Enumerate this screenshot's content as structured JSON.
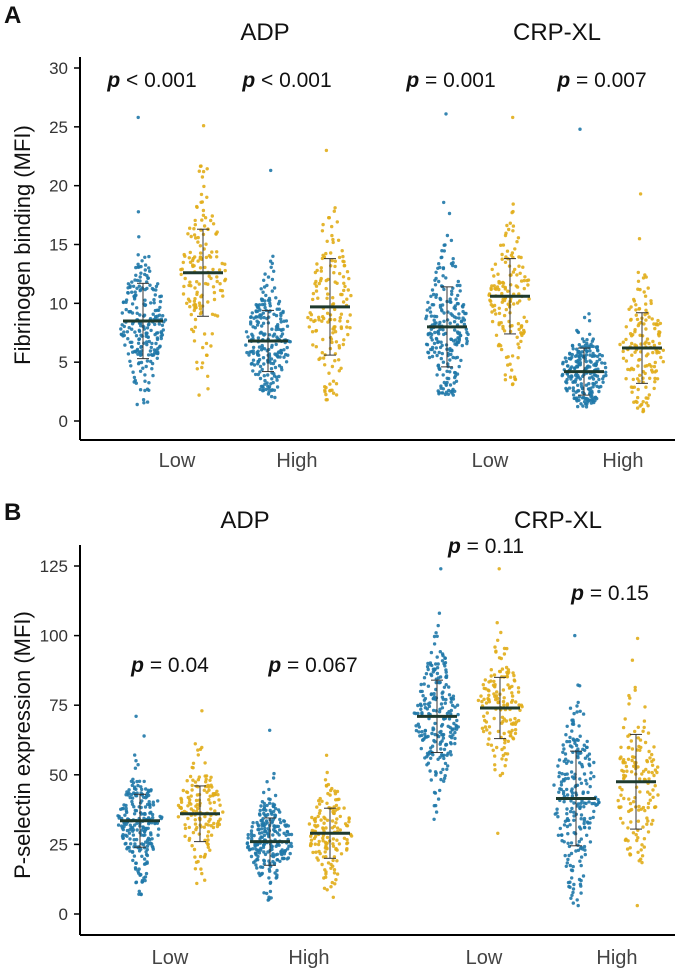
{
  "colors": {
    "blue": "#1f78a8",
    "gold": "#e1ad1a",
    "mean": "#1e3a2e",
    "sd": "#333333",
    "axis": "#000000"
  },
  "chart_data": [
    {
      "type": "scatter",
      "panel_label": "A",
      "ylabel": "Fibrinogen binding (MFI)",
      "ylim": [
        0,
        30
      ],
      "yticks": [
        0,
        5,
        10,
        15,
        20,
        25,
        30
      ],
      "agonists": [
        "ADP",
        "CRP-XL"
      ],
      "categories": [
        "Low",
        "High",
        "Low",
        "High"
      ],
      "groups": [
        {
          "agonist": "ADP",
          "level": "Low",
          "p_label": "p",
          "p_value": "< 0.001",
          "blue": {
            "mean": 8.5,
            "sd": 3.2,
            "min": 1.4,
            "max": 25.8,
            "n": 230
          },
          "gold": {
            "mean": 12.6,
            "sd": 3.7,
            "min": 2.2,
            "max": 25.1,
            "n": 150
          }
        },
        {
          "agonist": "ADP",
          "level": "High",
          "p_label": "p",
          "p_value": "< 0.001",
          "blue": {
            "mean": 6.8,
            "sd": 2.6,
            "min": 2.0,
            "max": 21.3,
            "n": 230
          },
          "gold": {
            "mean": 9.7,
            "sd": 4.1,
            "min": 1.8,
            "max": 23.0,
            "n": 150
          }
        },
        {
          "agonist": "CRP-XL",
          "level": "Low",
          "p_label": "p",
          "p_value": "= 0.001",
          "blue": {
            "mean": 8.0,
            "sd": 3.4,
            "min": 2.2,
            "max": 26.1,
            "n": 230
          },
          "gold": {
            "mean": 10.6,
            "sd": 3.2,
            "min": 3.1,
            "max": 25.8,
            "n": 150
          }
        },
        {
          "agonist": "CRP-XL",
          "level": "High",
          "p_label": "p",
          "p_value": "= 0.007",
          "blue": {
            "mean": 4.2,
            "sd": 2.0,
            "min": 1.2,
            "max": 24.8,
            "n": 230
          },
          "gold": {
            "mean": 6.2,
            "sd": 3.0,
            "min": 0.8,
            "max": 19.3,
            "n": 150
          }
        }
      ]
    },
    {
      "type": "scatter",
      "panel_label": "B",
      "ylabel": "P-selectin expression (MFI)",
      "ylim": [
        0,
        125
      ],
      "yticks": [
        0,
        25,
        50,
        75,
        100,
        125
      ],
      "agonists": [
        "ADP",
        "CRP-XL"
      ],
      "categories": [
        "Low",
        "High",
        "Low",
        "High"
      ],
      "groups": [
        {
          "agonist": "ADP",
          "level": "Low",
          "p_label": "p",
          "p_value": "= 0.04",
          "blue": {
            "mean": 33.5,
            "sd": 9.5,
            "min": 7.0,
            "max": 71.0,
            "n": 230
          },
          "gold": {
            "mean": 36.0,
            "sd": 10.0,
            "min": 11.0,
            "max": 73.0,
            "n": 150
          }
        },
        {
          "agonist": "ADP",
          "level": "High",
          "p_label": "p",
          "p_value": "= 0.067",
          "blue": {
            "mean": 26.0,
            "sd": 8.5,
            "min": 5.0,
            "max": 66.0,
            "n": 230
          },
          "gold": {
            "mean": 29.0,
            "sd": 9.0,
            "min": 6.0,
            "max": 57.0,
            "n": 150
          }
        },
        {
          "agonist": "CRP-XL",
          "level": "Low",
          "p_label": "p",
          "p_value": "= 0.11",
          "blue": {
            "mean": 71.0,
            "sd": 13.0,
            "min": 34.0,
            "max": 124.0,
            "n": 230
          },
          "gold": {
            "mean": 74.0,
            "sd": 11.0,
            "min": 29.0,
            "max": 124.0,
            "n": 150
          }
        },
        {
          "agonist": "CRP-XL",
          "level": "High",
          "p_label": "p",
          "p_value": "= 0.15",
          "blue": {
            "mean": 41.5,
            "sd": 17.0,
            "min": 3.0,
            "max": 100.0,
            "n": 230
          },
          "gold": {
            "mean": 47.5,
            "sd": 17.0,
            "min": 3.0,
            "max": 99.0,
            "n": 150
          }
        }
      ]
    }
  ]
}
